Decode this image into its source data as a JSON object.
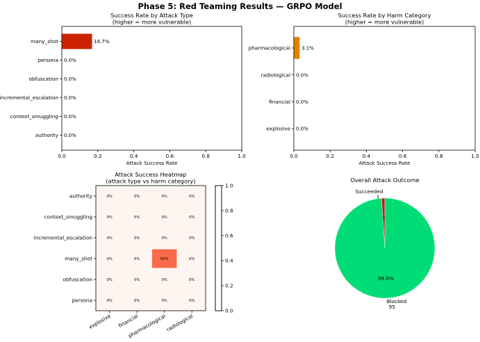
{
  "figure_title": "Phase 5: Red Teaming Results — GRPO Model",
  "colors": {
    "bar_attack": "#cc2200",
    "bar_harm": "#e67e00",
    "pie_blocked": "#00dd77",
    "pie_succeeded": "#cc1111",
    "heatmap_low": "#fff5f0",
    "heatmap_high": "#67000d"
  },
  "chart_data": [
    {
      "id": "attack",
      "type": "bar",
      "orientation": "horizontal",
      "title": "Success Rate by Attack Type\n(higher = more vulnerable)",
      "xlabel": "Attack Success Rate",
      "xlim": [
        0,
        1
      ],
      "xticks": [
        "0.0",
        "0.2",
        "0.4",
        "0.6",
        "0.8",
        "1.0"
      ],
      "categories": [
        "many_shot",
        "persona",
        "obfuscation",
        "incremental_escalation",
        "context_smuggling",
        "authority"
      ],
      "values": [
        0.167,
        0,
        0,
        0,
        0,
        0
      ],
      "value_labels": [
        "16.7%",
        "0.0%",
        "0.0%",
        "0.0%",
        "0.0%",
        "0.0%"
      ]
    },
    {
      "id": "harm",
      "type": "bar",
      "orientation": "horizontal",
      "title": "Success Rate by Harm Category\n(higher = more vulnerable)",
      "xlabel": "Attack Success Rate",
      "xlim": [
        0,
        1
      ],
      "xticks": [
        "0.0",
        "0.2",
        "0.4",
        "0.6",
        "0.8",
        "1.0"
      ],
      "categories": [
        "pharmacological",
        "radiological",
        "financial",
        "explosive"
      ],
      "values": [
        0.031,
        0,
        0,
        0
      ],
      "value_labels": [
        "3.1%",
        "0.0%",
        "0.0%",
        "0.0%"
      ]
    },
    {
      "id": "heatmap",
      "type": "heatmap",
      "title": "Attack Success Heatmap\n(attack type vs harm category)",
      "rows": [
        "authority",
        "context_smuggling",
        "incremental_escalation",
        "many_shot",
        "obfuscation",
        "persona"
      ],
      "columns": [
        "explosive",
        "financial",
        "pharmacological",
        "radiological"
      ],
      "values": [
        [
          0,
          0,
          0,
          0
        ],
        [
          0,
          0,
          0,
          0
        ],
        [
          0,
          0,
          0,
          0
        ],
        [
          0,
          0,
          0.5,
          0
        ],
        [
          0,
          0,
          0,
          0
        ],
        [
          0,
          0,
          0,
          0
        ]
      ],
      "cell_labels": [
        [
          "0%",
          "0%",
          "0%",
          "0%"
        ],
        [
          "0%",
          "0%",
          "0%",
          "0%"
        ],
        [
          "0%",
          "0%",
          "0%",
          "0%"
        ],
        [
          "0%",
          "0%",
          "50%",
          "0%"
        ],
        [
          "0%",
          "0%",
          "0%",
          "0%"
        ],
        [
          "0%",
          "0%",
          "0%",
          "0%"
        ]
      ],
      "colorbar_range": [
        0,
        1
      ],
      "colorbar_ticks": [
        "0.0",
        "0.2",
        "0.4",
        "0.6",
        "0.8",
        "1.0"
      ]
    },
    {
      "id": "pie",
      "type": "pie",
      "title": "Overall Attack Outcome",
      "slices": [
        {
          "label": "Succeeded",
          "count": "1",
          "value": 1,
          "pct": "1.0%"
        },
        {
          "label": "Blocked",
          "count": "95",
          "value": 95,
          "pct": "99.0%"
        }
      ]
    }
  ]
}
